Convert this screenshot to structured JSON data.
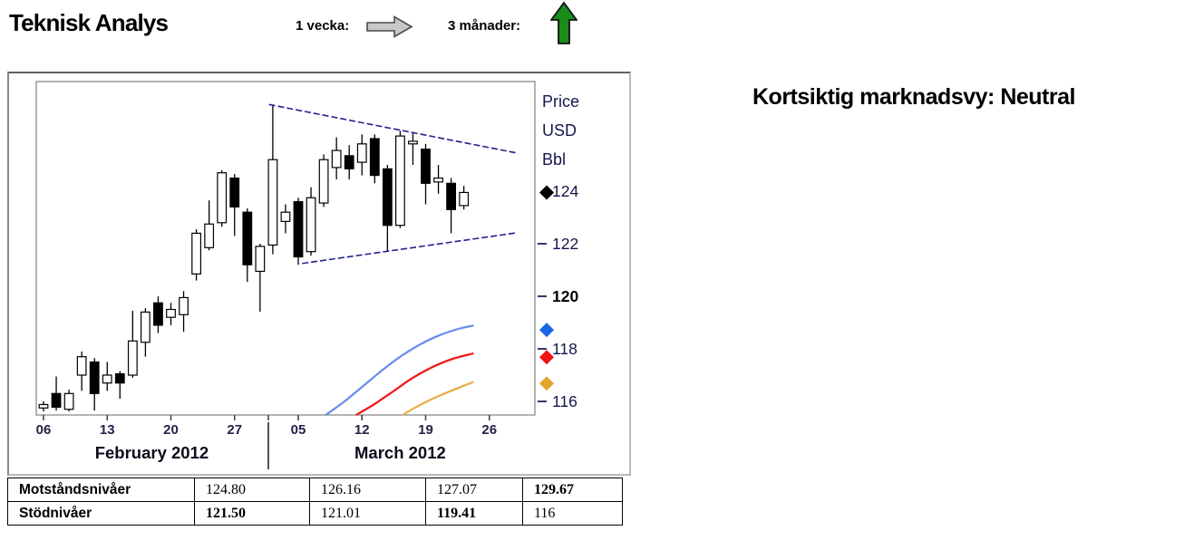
{
  "header": {
    "title": "Teknisk Analys",
    "week_label": "1 vecka:",
    "week_arrow": {
      "direction": "right",
      "fill": "#c8c8c8",
      "stroke": "#4a4a4a"
    },
    "quarter_label": "3 månader:",
    "quarter_arrow": {
      "direction": "up",
      "fill": "#1a8c1a",
      "stroke": "#111111"
    }
  },
  "market_view": {
    "label": "Kortsiktig marknadsvy: Neutral"
  },
  "chart_data": {
    "type": "candlestick",
    "title": "",
    "price_unit_labels": [
      "Price",
      "USD",
      "Bbl"
    ],
    "axis_text_color": "#16164f",
    "candle_up_color": "#ffffff",
    "candle_down_color": "#000000",
    "candle_outline_color": "#000000",
    "ylim": [
      115.48,
      128.17
    ],
    "grid": false,
    "dates": [
      "Feb 06",
      "Feb 07",
      "Feb 08",
      "Feb 09",
      "Feb 10",
      "Feb 13",
      "Feb 14",
      "Feb 15",
      "Feb 16",
      "Feb 17",
      "Feb 20",
      "Feb 21",
      "Feb 22",
      "Feb 23",
      "Feb 24",
      "Feb 27",
      "Feb 28",
      "Feb 29",
      "Mar 01",
      "Mar 02",
      "Mar 05",
      "Mar 06",
      "Mar 07",
      "Mar 08",
      "Mar 09",
      "Mar 12",
      "Mar 13",
      "Mar 14",
      "Mar 15",
      "Mar 16",
      "Mar 19",
      "Mar 20",
      "Mar 21",
      "Mar 22"
    ],
    "ohlc": [
      [
        115.75,
        116.0,
        115.62,
        115.88
      ],
      [
        116.3,
        116.95,
        115.65,
        115.78
      ],
      [
        115.7,
        116.45,
        115.62,
        116.3
      ],
      [
        117.0,
        117.9,
        116.4,
        117.7
      ],
      [
        117.5,
        117.65,
        115.65,
        116.3
      ],
      [
        116.7,
        117.5,
        116.4,
        117.0
      ],
      [
        117.05,
        117.15,
        116.1,
        116.7
      ],
      [
        117.0,
        119.45,
        116.9,
        118.3
      ],
      [
        118.25,
        119.55,
        117.7,
        119.4
      ],
      [
        119.75,
        120.0,
        118.6,
        118.9
      ],
      [
        119.2,
        119.75,
        118.9,
        119.5
      ],
      [
        119.3,
        120.2,
        118.65,
        119.95
      ],
      [
        120.85,
        122.55,
        120.6,
        122.4
      ],
      [
        121.85,
        123.65,
        121.75,
        122.75
      ],
      [
        122.8,
        124.8,
        122.65,
        124.7
      ],
      [
        124.5,
        124.65,
        122.3,
        123.4
      ],
      [
        123.2,
        123.35,
        120.55,
        121.2
      ],
      [
        120.95,
        122.0,
        119.41,
        121.9
      ],
      [
        121.95,
        127.3,
        121.6,
        125.2
      ],
      [
        122.85,
        123.5,
        122.4,
        123.2
      ],
      [
        123.6,
        123.75,
        121.2,
        121.5
      ],
      [
        121.7,
        124.15,
        121.55,
        123.75
      ],
      [
        123.55,
        125.4,
        123.4,
        125.2
      ],
      [
        124.9,
        126.05,
        124.45,
        125.55
      ],
      [
        125.35,
        125.75,
        124.45,
        124.85
      ],
      [
        125.1,
        126.16,
        124.6,
        125.8
      ],
      [
        126.0,
        126.16,
        124.3,
        124.6
      ],
      [
        124.85,
        125.0,
        121.7,
        122.7
      ],
      [
        122.7,
        126.3,
        122.6,
        126.1
      ],
      [
        125.8,
        126.2,
        125.0,
        125.9
      ],
      [
        125.6,
        125.8,
        123.5,
        124.3
      ],
      [
        124.35,
        125.0,
        123.9,
        124.5
      ],
      [
        124.3,
        124.5,
        122.4,
        123.3
      ],
      [
        123.45,
        124.2,
        123.3,
        123.95
      ]
    ],
    "y_ticks": [
      {
        "label": "124",
        "value": 124,
        "bold": false,
        "dash": false
      },
      {
        "label": "122",
        "value": 122,
        "bold": false,
        "dash": true
      },
      {
        "label": "120",
        "value": 120,
        "bold": true,
        "dash": true
      },
      {
        "label": "118",
        "value": 118,
        "bold": false,
        "dash": true
      },
      {
        "label": "116",
        "value": 116,
        "bold": false,
        "dash": true
      }
    ],
    "x_ticks": [
      {
        "label": "06",
        "day": 0
      },
      {
        "label": "13",
        "day": 5
      },
      {
        "label": "20",
        "day": 10
      },
      {
        "label": "27",
        "day": 15
      },
      {
        "label": "05",
        "day": 20
      },
      {
        "label": "12",
        "day": 25
      },
      {
        "label": "19",
        "day": 30
      },
      {
        "label": "26",
        "day": 35
      }
    ],
    "months": [
      {
        "label": "February 2012",
        "center_day": 8.5
      },
      {
        "label": "March 2012",
        "center_day": 28
      }
    ],
    "month_divider_day": 17.65,
    "trendlines": [
      {
        "name": "upper-resistance-line",
        "color": "#23238f",
        "points": [
          [
            17.7,
            127.3
          ],
          [
            37.2,
            125.45
          ]
        ]
      },
      {
        "name": "lower-support-line",
        "color": "#23238f",
        "points": [
          [
            20.3,
            121.25
          ],
          [
            37.2,
            122.42
          ]
        ]
      }
    ],
    "curves": [
      {
        "name": "blue-curve",
        "color": "#6b8fee",
        "points": [
          [
            22.2,
            115.5
          ],
          [
            23.5,
            115.95
          ],
          [
            25,
            116.55
          ],
          [
            26.5,
            117.15
          ],
          [
            28,
            117.7
          ],
          [
            29.5,
            118.15
          ],
          [
            31,
            118.5
          ],
          [
            32.5,
            118.75
          ],
          [
            33.7,
            118.88
          ]
        ]
      },
      {
        "name": "red-curve",
        "color": "#ee1c1c",
        "points": [
          [
            24.6,
            115.5
          ],
          [
            26,
            115.9
          ],
          [
            27.5,
            116.4
          ],
          [
            29,
            116.9
          ],
          [
            30.5,
            117.3
          ],
          [
            32,
            117.6
          ],
          [
            33.7,
            117.82
          ]
        ]
      },
      {
        "name": "orange-curve",
        "color": "#e8b04a",
        "points": [
          [
            28.25,
            115.5
          ],
          [
            29.5,
            115.85
          ],
          [
            31,
            116.2
          ],
          [
            32.5,
            116.5
          ],
          [
            33.7,
            116.73
          ]
        ]
      }
    ],
    "axis_markers": [
      {
        "name": "price-marker",
        "color": "#000000",
        "value": 123.95
      },
      {
        "name": "blue-marker",
        "color": "#1c66e8",
        "value": 118.72
      },
      {
        "name": "red-marker",
        "color": "#ee1414",
        "value": 117.68
      },
      {
        "name": "orange-marker",
        "color": "#e3a52e",
        "value": 116.68
      }
    ]
  },
  "levels_table": {
    "rows": [
      {
        "label": "Motståndsnivåer",
        "values": [
          {
            "text": "124.80",
            "bold": false
          },
          {
            "text": "126.16",
            "bold": false
          },
          {
            "text": "127.07",
            "bold": false
          },
          {
            "text": "129.67",
            "bold": true
          }
        ]
      },
      {
        "label": "Stödnivåer",
        "values": [
          {
            "text": "121.50",
            "bold": true
          },
          {
            "text": "121.01",
            "bold": false
          },
          {
            "text": "119.41",
            "bold": true
          },
          {
            "text": "116",
            "bold": false
          }
        ]
      }
    ]
  }
}
